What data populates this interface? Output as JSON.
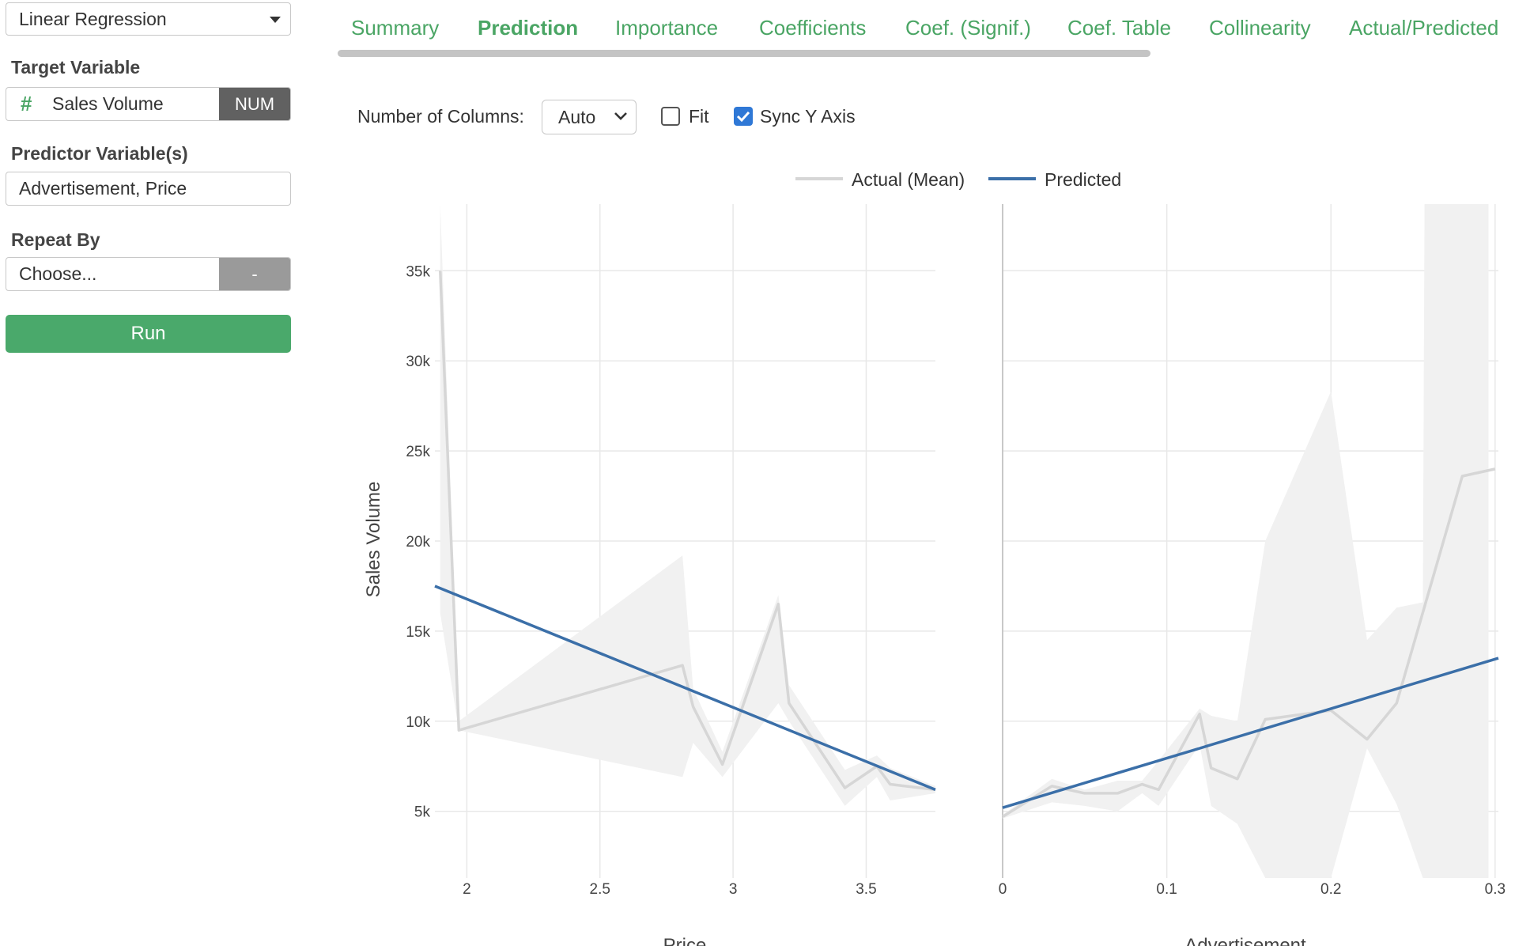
{
  "left_panel": {
    "model_select": "Linear Regression",
    "target_label": "Target Variable",
    "target_value": "Sales Volume",
    "target_type": "NUM",
    "predictor_label": "Predictor Variable(s)",
    "predictor_value": "Advertisement, Price",
    "repeat_label": "Repeat By",
    "repeat_placeholder": "Choose...",
    "repeat_button": "-",
    "run_button": "Run"
  },
  "tabs": [
    {
      "label": "Summary"
    },
    {
      "label": "Prediction",
      "active": true
    },
    {
      "label": "Importance"
    },
    {
      "label": "Coefficients"
    },
    {
      "label": "Coef. (Signif.)"
    },
    {
      "label": "Coef. Table"
    },
    {
      "label": "Collinearity"
    },
    {
      "label": "Actual/Predicted"
    }
  ],
  "options": {
    "columns_label": "Number of Columns:",
    "columns_value": "Auto",
    "fit_label": "Fit",
    "fit_checked": false,
    "sync_label": "Sync Y Axis",
    "sync_checked": true
  },
  "colors": {
    "accent": "#4aa564",
    "actual_line": "#d6d6d6",
    "predicted_line": "#3b6fa8",
    "band": "#f1f1f1"
  },
  "chart_data": [
    {
      "type": "line",
      "xlabel": "Price",
      "ylabel": "Sales Volume",
      "xlim": [
        1.88,
        3.76
      ],
      "ylim": [
        1300,
        38700
      ],
      "x_ticks": [
        "2",
        "2.5",
        "3",
        "3.5"
      ],
      "y_ticks": [
        "5k",
        "10k",
        "15k",
        "20k",
        "25k",
        "30k",
        "35k"
      ],
      "grid": true,
      "legend_position": "top-center",
      "series": [
        {
          "name": "Actual (Mean)",
          "x": [
            1.9,
            1.97,
            2.81,
            2.85,
            2.96,
            3.17,
            3.21,
            3.42,
            3.54,
            3.59,
            3.76
          ],
          "y": [
            35000,
            9500,
            13100,
            10800,
            7600,
            16500,
            11000,
            6300,
            7500,
            6500,
            6200
          ]
        },
        {
          "name": "Predicted",
          "x": [
            1.88,
            3.76
          ],
          "y": [
            17500,
            6200
          ]
        }
      ],
      "confidence_band": {
        "x": [
          1.9,
          1.97,
          2.81,
          2.85,
          2.96,
          3.17,
          3.21,
          3.42,
          3.54,
          3.59,
          3.76
        ],
        "lower": [
          16000,
          9500,
          6900,
          8800,
          6900,
          11000,
          10000,
          5300,
          6900,
          5600,
          6000
        ],
        "upper": [
          38700,
          10000,
          19200,
          11800,
          8300,
          17000,
          12000,
          7300,
          8100,
          7400,
          6400
        ]
      }
    },
    {
      "type": "line",
      "xlabel": "Advertisement",
      "ylabel": "",
      "xlim": [
        0,
        0.302
      ],
      "ylim": [
        1300,
        38700
      ],
      "x_ticks": [
        "0",
        "0.1",
        "0.2",
        "0.3"
      ],
      "grid": true,
      "series": [
        {
          "name": "Actual (Mean)",
          "x": [
            0,
            0.03,
            0.05,
            0.07,
            0.085,
            0.095,
            0.12,
            0.127,
            0.143,
            0.16,
            0.2,
            0.222,
            0.24,
            0.28,
            0.3
          ],
          "y": [
            4700,
            6400,
            6000,
            6000,
            6500,
            6200,
            10400,
            7400,
            6800,
            10100,
            10600,
            9000,
            11000,
            23600,
            24000
          ]
        },
        {
          "name": "Predicted",
          "x": [
            0,
            0.302
          ],
          "y": [
            5200,
            13500
          ]
        }
      ],
      "confidence_band": {
        "x": [
          0,
          0.03,
          0.05,
          0.07,
          0.085,
          0.095,
          0.12,
          0.127,
          0.143,
          0.16,
          0.2,
          0.222,
          0.24,
          0.256,
          0.257,
          0.296
        ],
        "lower": [
          4600,
          5500,
          5300,
          5000,
          6000,
          5300,
          8700,
          5300,
          4300,
          1300,
          1300,
          8500,
          5400,
          1300,
          1300,
          1300
        ],
        "upper": [
          4800,
          6800,
          6200,
          6700,
          6700,
          7800,
          10700,
          10300,
          10000,
          20000,
          28300,
          14500,
          16300,
          16600,
          38700,
          38700
        ]
      }
    }
  ]
}
